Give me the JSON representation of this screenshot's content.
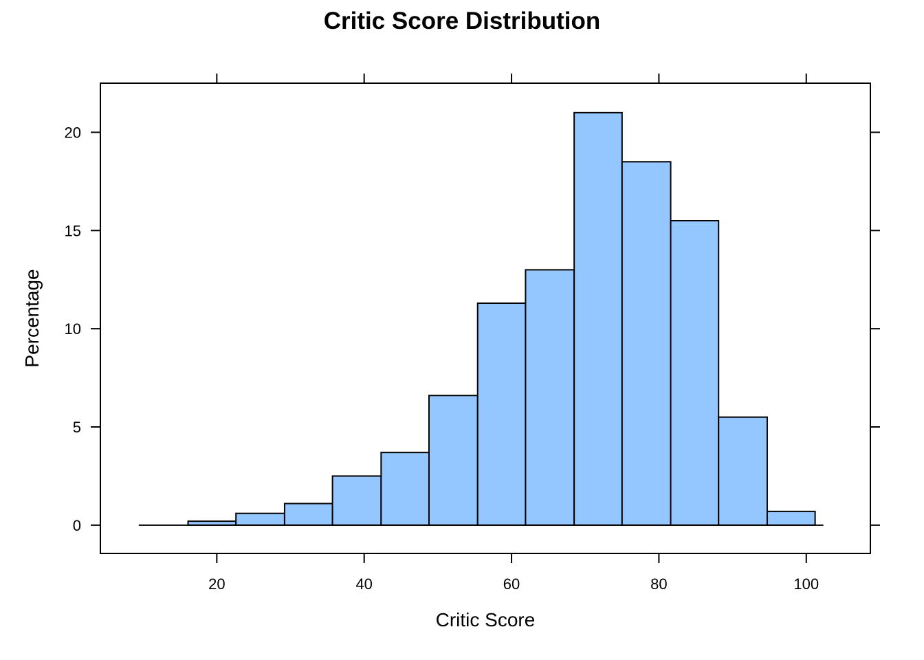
{
  "chart_data": {
    "type": "bar",
    "title": "Critic Score Distribution",
    "xlabel": "Critic Score",
    "ylabel": "Percentage",
    "xlim": [
      4.2,
      108.7
    ],
    "ylim": [
      -1.44,
      22.5
    ],
    "xticks": [
      20,
      40,
      60,
      80,
      100
    ],
    "yticks": [
      0,
      5,
      10,
      15,
      20
    ],
    "x_tick_labels": [
      "20",
      "40",
      "60",
      "80",
      "100"
    ],
    "y_tick_labels": [
      "0",
      "5",
      "10",
      "15",
      "20"
    ],
    "bin_edges": [
      9.5,
      16.1,
      22.6,
      29.2,
      35.7,
      42.3,
      48.8,
      55.4,
      61.9,
      68.5,
      75.0,
      81.6,
      88.1,
      94.7,
      101.2
    ],
    "values": [
      0.0,
      0.2,
      0.6,
      1.1,
      2.5,
      3.7,
      6.6,
      11.3,
      13.0,
      21.0,
      18.5,
      15.5,
      5.5,
      0.7
    ],
    "bar_color": "#94c6ff",
    "grid": false
  }
}
